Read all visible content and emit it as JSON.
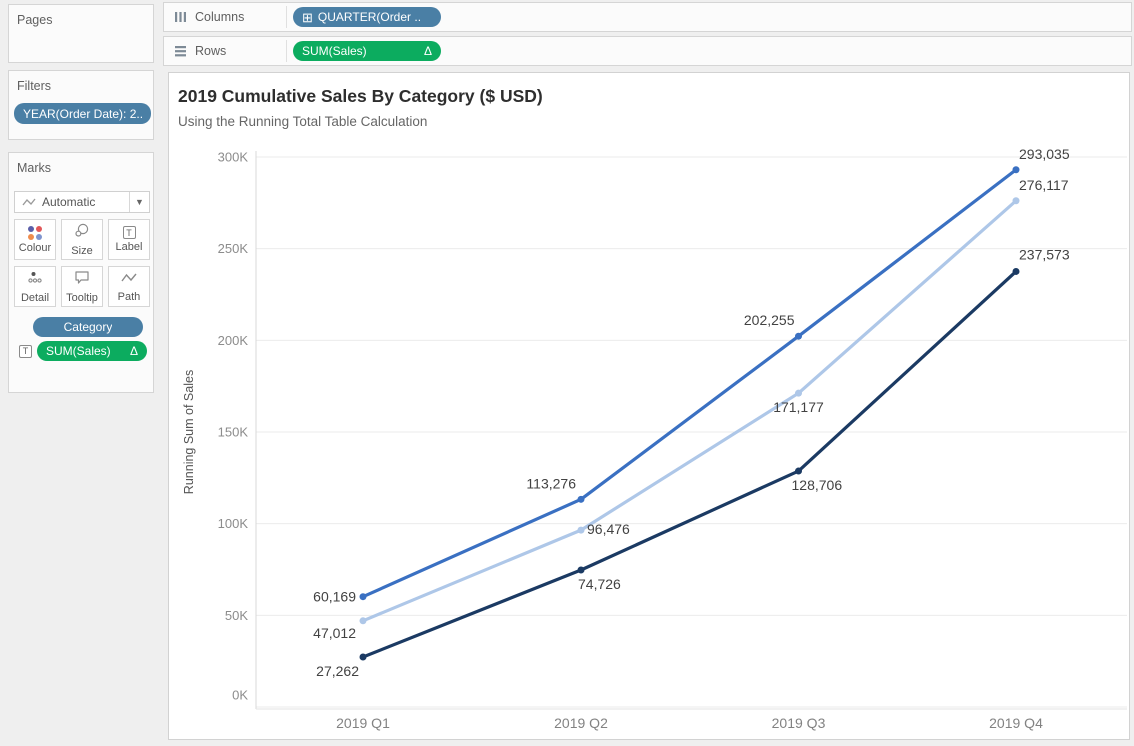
{
  "cards": {
    "pages": {
      "title": "Pages"
    },
    "filters": {
      "title": "Filters",
      "pill": {
        "text": "YEAR(Order Date): 2..",
        "color": "#4A7FA5"
      }
    },
    "marks": {
      "title": "Marks",
      "mark_type": "Automatic",
      "buttons": [
        {
          "label": "Colour"
        },
        {
          "label": "Size"
        },
        {
          "label": "Label"
        },
        {
          "label": "Detail"
        },
        {
          "label": "Tooltip"
        },
        {
          "label": "Path"
        }
      ],
      "pills": [
        {
          "text": "Category",
          "color": "#4A7FA5",
          "icon": "colour-dots-icon"
        },
        {
          "text": "SUM(Sales)",
          "badge": "Δ",
          "color": "#0CAC5F",
          "icon": "label-t-icon"
        }
      ]
    }
  },
  "shelves": {
    "columns": {
      "label": "Columns",
      "pill": {
        "text": "QUARTER(Order ..",
        "icon": "⊞",
        "color": "#4A7FA5"
      }
    },
    "rows": {
      "label": "Rows",
      "pill": {
        "text": "SUM(Sales)",
        "badge": "Δ",
        "color": "#0CAC5F"
      }
    }
  },
  "chart": {
    "title": "2019 Cumulative Sales By Category ($ USD)",
    "subtitle": "Using the Running Total Table Calculation"
  },
  "chart_data": {
    "type": "line",
    "title": "2019 Cumulative Sales By Category ($ USD)",
    "subtitle": "Using the Running Total Table Calculation",
    "x": [
      "2019 Q1",
      "2019 Q2",
      "2019 Q3",
      "2019 Q4"
    ],
    "xlabel": "",
    "ylabel": "Running Sum of Sales",
    "ylim": [
      0,
      300000
    ],
    "ytick_values": [
      0,
      50000,
      100000,
      150000,
      200000,
      250000,
      300000
    ],
    "ytick_labels": [
      "0K",
      "50K",
      "100K",
      "150K",
      "200K",
      "250K",
      "300K"
    ],
    "grid": "horizontal",
    "legend": "none",
    "series": [
      {
        "name": "medium-blue",
        "color": "#3A70C2",
        "values": [
          60169,
          113276,
          202255,
          293035
        ],
        "labels": [
          "60,169",
          "113,276",
          "202,255",
          "293,035"
        ]
      },
      {
        "name": "light-blue",
        "color": "#AEC7E8",
        "values": [
          47012,
          96476,
          171177,
          276117
        ],
        "labels": [
          "47,012",
          "96,476",
          "171,177",
          "276,117"
        ]
      },
      {
        "name": "dark-navy",
        "color": "#1B3A63",
        "values": [
          27262,
          74726,
          128706,
          237573
        ],
        "labels": [
          "27,262",
          "74,726",
          "128,706",
          "237,573"
        ]
      }
    ]
  }
}
